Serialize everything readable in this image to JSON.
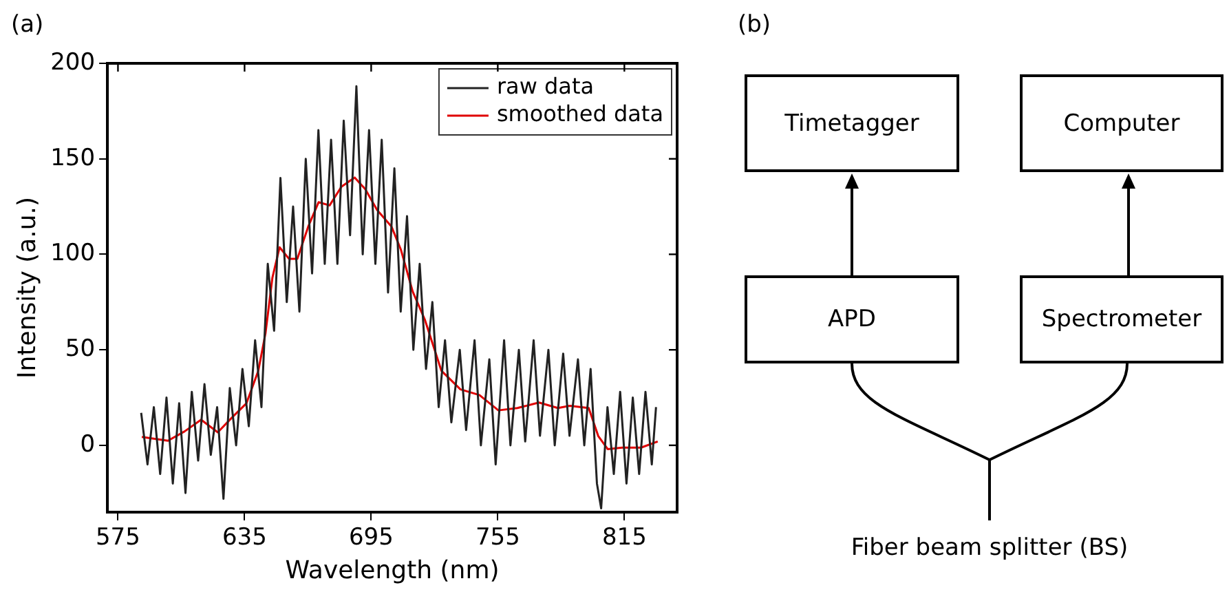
{
  "chart_data": [
    {
      "type": "line",
      "title": "(a)",
      "xlabel": "Wavelength (nm)",
      "ylabel": "Intensity (a.u.)",
      "xlim": [
        570,
        840
      ],
      "xticks": [
        575,
        635,
        695,
        755,
        815
      ],
      "ylim": [
        -35,
        200
      ],
      "yticks": [
        0,
        50,
        100,
        150,
        200
      ],
      "grid": false,
      "legend": "top right",
      "line_style": "solid",
      "series": [
        {
          "name": "raw data",
          "color": "#222222",
          "x": [
            586,
            589,
            592,
            595,
            598,
            601,
            604,
            607,
            610,
            613,
            616,
            619,
            622,
            625,
            628,
            631,
            634,
            637,
            640,
            643,
            646,
            649,
            652,
            655,
            658,
            661,
            664,
            667,
            670,
            673,
            676,
            679,
            682,
            685,
            688,
            691,
            694,
            697,
            700,
            703,
            706,
            709,
            712,
            715,
            718,
            721,
            724,
            727,
            730,
            733,
            737,
            740,
            744,
            747,
            751,
            754,
            758,
            761,
            765,
            768,
            772,
            775,
            779,
            782,
            786,
            789,
            793,
            796,
            799,
            802,
            804,
            807,
            810,
            813,
            816,
            819,
            822,
            825,
            828,
            830
          ],
          "values": [
            17,
            -10,
            20,
            -15,
            25,
            -20,
            22,
            -25,
            28,
            -8,
            32,
            -5,
            20,
            -28,
            30,
            0,
            40,
            10,
            55,
            20,
            95,
            60,
            140,
            75,
            125,
            70,
            150,
            90,
            165,
            95,
            160,
            95,
            170,
            110,
            188,
            100,
            165,
            95,
            160,
            80,
            145,
            70,
            120,
            50,
            95,
            40,
            75,
            20,
            55,
            12,
            50,
            8,
            55,
            0,
            45,
            -10,
            55,
            0,
            50,
            2,
            55,
            5,
            50,
            0,
            48,
            5,
            45,
            0,
            40,
            -20,
            -33,
            20,
            -15,
            28,
            -20,
            25,
            -15,
            28,
            -10,
            20
          ]
        },
        {
          "name": "smoothed data",
          "color": "#e00000",
          "x": [
            586.3,
            598.7,
            606.6,
            614.4,
            622.3,
            629.1,
            635.9,
            641.5,
            644.9,
            648.2,
            651.6,
            656.1,
            660,
            665.2,
            670.1,
            675.3,
            680.9,
            687.2,
            692.2,
            697.8,
            704.6,
            709.1,
            714.7,
            720.4,
            728.3,
            737.3,
            746.3,
            755.3,
            764.3,
            774.5,
            783.5,
            789.1,
            798.1,
            802.6,
            807.1,
            813.9,
            822.9,
            830.8
          ],
          "values": [
            4.4,
            2.4,
            7.3,
            13.4,
            6.8,
            14.6,
            22,
            39,
            58.5,
            87.8,
            103.7,
            97.6,
            97.6,
            114.6,
            127.3,
            125.6,
            135.4,
            140.2,
            134.1,
            123.2,
            114.6,
            102.4,
            80.5,
            65.9,
            39,
            29.3,
            26.3,
            18.3,
            19.5,
            22.4,
            19.5,
            20.7,
            19.5,
            4.9,
            -2,
            -1.2,
            -1.2,
            2
          ]
        }
      ]
    },
    {
      "type": "other",
      "title": "(b)",
      "annotations": [
        "Timetagger",
        "Computer",
        "APD",
        "Spectrometer",
        "Fiber beam splitter (BS)"
      ]
    }
  ]
}
